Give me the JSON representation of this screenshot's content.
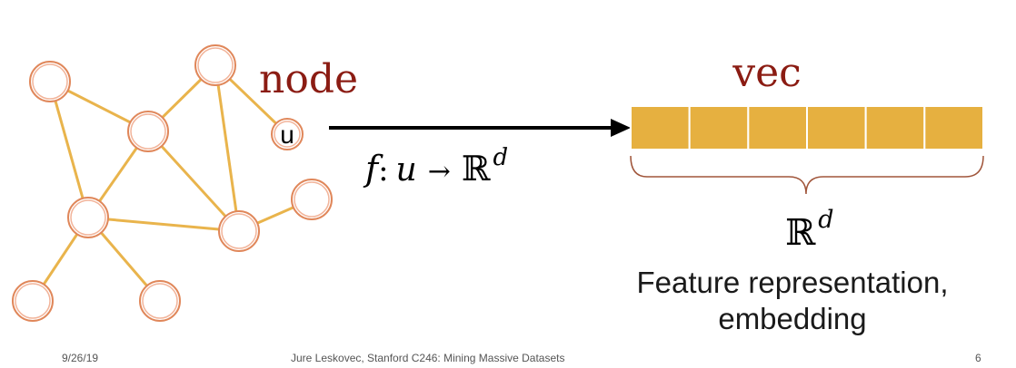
{
  "graph": {
    "title": "node",
    "node_label": "u"
  },
  "mapping": {
    "f": "f",
    "colon": ":",
    "u": "u",
    "arrow": "→",
    "space": "ℝ",
    "dim": "d"
  },
  "vector": {
    "title": "vec",
    "cell_count": 6,
    "space": "ℝ",
    "dim": "d",
    "description_line1": "Feature representation,",
    "description_line2": "embedding"
  },
  "colors": {
    "edge": "#E9B44C",
    "node_stroke": "#E0875A",
    "title": "#8B1C13",
    "vector_cell": "#E6B040"
  },
  "footer": {
    "date": "9/26/19",
    "credit": "Jure Leskovec, Stanford C246: Mining Massive Datasets",
    "page": "6"
  }
}
